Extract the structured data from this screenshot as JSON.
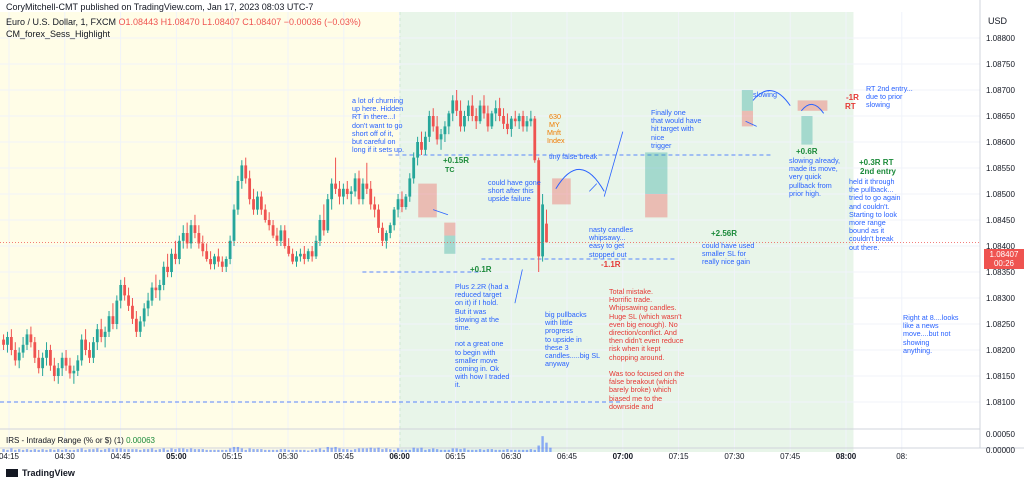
{
  "header": {
    "title": "CoryMitchell-CMT published on TradingView.com, Jan 17, 2023 08:03 UTC-7"
  },
  "ohlc": {
    "symbol": "Euro / U.S. Dollar, 1, FXCM",
    "o": "O1.08443",
    "h": "H1.08470",
    "l": "L1.08407",
    "c": "C1.08407",
    "chg": "−0.00036 (−0.03%)"
  },
  "indicators": {
    "main": "CM_forex_Sess_Highlight",
    "sub_name": "IRS - Intraday Range (% or $) (1)",
    "sub_value": "0.00063"
  },
  "axis": {
    "currency": "USD",
    "price_ticks": [
      "1.08800",
      "1.08750",
      "1.08700",
      "1.08650",
      "1.08600",
      "1.08550",
      "1.08500",
      "1.08450",
      "1.08400",
      "1.08350",
      "1.08300",
      "1.08250",
      "1.08200",
      "1.08150",
      "1.08100"
    ],
    "sub_ticks": [
      "0.00050",
      "0.00000"
    ],
    "time_ticks": [
      "04:15",
      "04:30",
      "04:45",
      "05:00",
      "05:15",
      "05:30",
      "05:45",
      "06:00",
      "06:15",
      "06:30",
      "06:45",
      "07:00",
      "07:15",
      "07:30",
      "07:45",
      "08:00",
      "08:"
    ]
  },
  "last_price": {
    "price": "1.08407",
    "countdown": "00:26"
  },
  "branding": {
    "logo": "TradingView"
  },
  "colors": {
    "up": "#26a69a",
    "down": "#ef5350",
    "pre_session": "#fffde7",
    "session": "#e8f5e9",
    "annotation_blue": "#2962ff"
  },
  "annotations": {
    "churning": "a lot of churning\nup here. Hidden\nRT in there...I\ndon't want to go\nshort off of it,\nbut careful on\nlong if it sets up.",
    "trade1_result": "+0.15R",
    "trade1_tc": "TC",
    "could_have_gone_short": "could have gone\nshort after this\nupside failure",
    "trade2_result": "+0.1R",
    "plus_2r": "Plus 2.2R (had a\nreduced target\non it) if I hold.\nBut it was\nslowing at the\ntime.\n\nnot a great one\nto begin with\nsmaller move\ncoming in. Ok\nwith how I traded\nit.",
    "big_pullbacks": "big pullbacks\nwith little\nprogress\nto upside in\nthese 3\ncandles.....big SL\nanyway",
    "mmi_630": "630",
    "mmi_my": "MY",
    "mmi_mnft": "Mnft",
    "mmi_index": "Index",
    "tiny_false_break": "tiny false break",
    "nasty_candles": "nasty candles\nwhipsawy...\neasy to get\nstopped out",
    "trade3_result": "-1.1R",
    "total_mistake": "Total mistake.\nHorrific trade.\nWhipsawing candles.\nHuge SL (which wasn't\neven big enough). No\ndirection/conflict. And\nthen didn't even reduce\nrisk when it kept\nchopping around.\n\nWas too focused on the\nfalse breakout (which\nbarely broke) which\nbiased me to the\ndownside and",
    "finally_one": "Finally one\nthat would have\nhit target with\nnice\ntrigger",
    "trade4_result": "+2.56R",
    "could_have_used": "could have used\nsmaller SL for\nreally nice gain",
    "slowing": "slowing",
    "trade5_result": "+0.6R",
    "slowing_already": "slowing already,\nmade its move,\nvery quick\npullback from\nprior high.",
    "trade6_result": "-1R",
    "rt_label": "RT",
    "rt_2nd_entry": "RT 2nd entry...\ndue to prior\nslowing",
    "trade7_result": "+0.3R RT",
    "second_entry": "2nd entry",
    "held_it": "held it through\nthe pullback...\ntried to go again\nand couldn't.\nStarting to look\nmore range\nbound as it\ncouldn't break\nout there.",
    "right_at_8": "Right at 8....looks\nlike a news\nmove....but not\nshowing\nanything."
  },
  "chart_data": {
    "type": "candlestick",
    "symbol": "EURUSD",
    "interval": "1",
    "ylim": [
      1.0805,
      1.0885
    ],
    "grid": true,
    "sessions": [
      {
        "from": "04:12",
        "to": "06:00"
      },
      {
        "from": "06:00",
        "to": "08:02"
      }
    ],
    "reference_levels": [
      1.08575,
      1.08375,
      1.0835,
      1.081
    ],
    "ohlc": [
      [
        1.0822,
        1.0823,
        1.082,
        1.0821
      ],
      [
        1.0821,
        1.08235,
        1.08195,
        1.08225
      ],
      [
        1.08225,
        1.0824,
        1.0819,
        1.082
      ],
      [
        1.082,
        1.08215,
        1.0817,
        1.0818
      ],
      [
        1.0818,
        1.08205,
        1.08165,
        1.08195
      ],
      [
        1.08195,
        1.08225,
        1.08185,
        1.0821
      ],
      [
        1.0821,
        1.0824,
        1.082,
        1.0823
      ],
      [
        1.0823,
        1.08245,
        1.08205,
        1.08215
      ],
      [
        1.08215,
        1.08225,
        1.08175,
        1.08185
      ],
      [
        1.08185,
        1.082,
        1.08155,
        1.08165
      ],
      [
        1.08165,
        1.08195,
        1.0815,
        1.08185
      ],
      [
        1.08185,
        1.08215,
        1.0817,
        1.082
      ],
      [
        1.082,
        1.0821,
        1.0816,
        1.0817
      ],
      [
        1.0817,
        1.08185,
        1.0814,
        1.0815
      ],
      [
        1.0815,
        1.08175,
        1.08135,
        1.08165
      ],
      [
        1.08165,
        1.08195,
        1.0815,
        1.08185
      ],
      [
        1.08185,
        1.082,
        1.0816,
        1.0817
      ],
      [
        1.0817,
        1.08185,
        1.08145,
        1.08155
      ],
      [
        1.08155,
        1.0817,
        1.08135,
        1.0816
      ],
      [
        1.0816,
        1.0819,
        1.0815,
        1.0818
      ],
      [
        1.0818,
        1.0823,
        1.0817,
        1.0822
      ],
      [
        1.0822,
        1.0824,
        1.0819,
        1.082
      ],
      [
        1.082,
        1.08215,
        1.08175,
        1.08185
      ],
      [
        1.08185,
        1.08225,
        1.08175,
        1.08215
      ],
      [
        1.08215,
        1.0825,
        1.082,
        1.0824
      ],
      [
        1.0824,
        1.0826,
        1.08215,
        1.08225
      ],
      [
        1.08225,
        1.08245,
        1.08205,
        1.08235
      ],
      [
        1.08235,
        1.08275,
        1.08225,
        1.08265
      ],
      [
        1.08265,
        1.0829,
        1.0824,
        1.0825
      ],
      [
        1.0825,
        1.08305,
        1.0824,
        1.08295
      ],
      [
        1.08295,
        1.08335,
        1.0828,
        1.08325
      ],
      [
        1.08325,
        1.0834,
        1.08295,
        1.08305
      ],
      [
        1.08305,
        1.0832,
        1.08275,
        1.08285
      ],
      [
        1.08285,
        1.083,
        1.0825,
        1.0826
      ],
      [
        1.0826,
        1.08275,
        1.08225,
        1.08235
      ],
      [
        1.08235,
        1.08265,
        1.08225,
        1.08255
      ],
      [
        1.08255,
        1.0829,
        1.08245,
        1.0828
      ],
      [
        1.0828,
        1.0831,
        1.08265,
        1.08295
      ],
      [
        1.08295,
        1.0833,
        1.08285,
        1.0832
      ],
      [
        1.0832,
        1.08345,
        1.083,
        1.08315
      ],
      [
        1.08315,
        1.08335,
        1.08295,
        1.08325
      ],
      [
        1.08325,
        1.0837,
        1.08315,
        1.0836
      ],
      [
        1.0836,
        1.08385,
        1.0834,
        1.0835
      ],
      [
        1.0835,
        1.08395,
        1.0834,
        1.08385
      ],
      [
        1.08385,
        1.0841,
        1.08365,
        1.08375
      ],
      [
        1.08375,
        1.0842,
        1.08365,
        1.0841
      ],
      [
        1.0841,
        1.0844,
        1.08395,
        1.08425
      ],
      [
        1.08425,
        1.08445,
        1.08395,
        1.08405
      ],
      [
        1.08405,
        1.0845,
        1.08395,
        1.0844
      ],
      [
        1.0844,
        1.0846,
        1.08415,
        1.08425
      ],
      [
        1.08425,
        1.0844,
        1.08395,
        1.08405
      ],
      [
        1.08405,
        1.0842,
        1.0838,
        1.0839
      ],
      [
        1.0839,
        1.08405,
        1.0837,
        1.08375
      ],
      [
        1.08375,
        1.0839,
        1.08355,
        1.08365
      ],
      [
        1.08365,
        1.08385,
        1.08355,
        1.0838
      ],
      [
        1.0838,
        1.08395,
        1.0836,
        1.0837
      ],
      [
        1.0837,
        1.0838,
        1.0835,
        1.0836
      ],
      [
        1.0836,
        1.0838,
        1.0835,
        1.08375
      ],
      [
        1.08375,
        1.0842,
        1.08365,
        1.0841
      ],
      [
        1.0841,
        1.0848,
        1.084,
        1.0847
      ],
      [
        1.0847,
        1.08535,
        1.0846,
        1.08525
      ],
      [
        1.08525,
        1.08565,
        1.0851,
        1.08555
      ],
      [
        1.08555,
        1.0857,
        1.0852,
        1.0853
      ],
      [
        1.0853,
        1.08545,
        1.0848,
        1.0849
      ],
      [
        1.0849,
        1.0851,
        1.0846,
        1.0847
      ],
      [
        1.0847,
        1.08505,
        1.0846,
        1.08495
      ],
      [
        1.08495,
        1.08505,
        1.0846,
        1.0847
      ],
      [
        1.0847,
        1.0848,
        1.08445,
        1.0845
      ],
      [
        1.0845,
        1.08465,
        1.0843,
        1.0844
      ],
      [
        1.0844,
        1.0845,
        1.08415,
        1.0842
      ],
      [
        1.0842,
        1.08435,
        1.084,
        1.0841
      ],
      [
        1.0841,
        1.0844,
        1.084,
        1.0843
      ],
      [
        1.0843,
        1.0844,
        1.08395,
        1.084
      ],
      [
        1.084,
        1.08415,
        1.0838,
        1.08385
      ],
      [
        1.08385,
        1.08395,
        1.08365,
        1.0837
      ],
      [
        1.0837,
        1.0839,
        1.0836,
        1.0838
      ],
      [
        1.0838,
        1.08395,
        1.0837,
        1.08385
      ],
      [
        1.08385,
        1.084,
        1.08365,
        1.08375
      ],
      [
        1.08375,
        1.08395,
        1.0837,
        1.0839
      ],
      [
        1.0839,
        1.084,
        1.0837,
        1.0838
      ],
      [
        1.0838,
        1.0842,
        1.08375,
        1.0841
      ],
      [
        1.0841,
        1.0846,
        1.084,
        1.0845
      ],
      [
        1.0845,
        1.0848,
        1.0842,
        1.0843
      ],
      [
        1.0843,
        1.085,
        1.08425,
        1.0849
      ],
      [
        1.0849,
        1.0853,
        1.0847,
        1.0852
      ],
      [
        1.0852,
        1.0857,
        1.085,
        1.0851
      ],
      [
        1.0851,
        1.08525,
        1.0848,
        1.08495
      ],
      [
        1.08495,
        1.0852,
        1.0848,
        1.0851
      ],
      [
        1.0851,
        1.08525,
        1.0849,
        1.085
      ],
      [
        1.085,
        1.08515,
        1.0848,
        1.08505
      ],
      [
        1.08505,
        1.0854,
        1.08495,
        1.0853
      ],
      [
        1.0853,
        1.08545,
        1.0848,
        1.0849
      ],
      [
        1.0849,
        1.0853,
        1.0848,
        1.0852
      ],
      [
        1.0852,
        1.0856,
        1.085,
        1.0851
      ],
      [
        1.0851,
        1.08525,
        1.0847,
        1.0848
      ],
      [
        1.0848,
        1.08495,
        1.08455,
        1.0847
      ],
      [
        1.0847,
        1.0848,
        1.08425,
        1.08435
      ],
      [
        1.08435,
        1.08445,
        1.084,
        1.0841
      ],
      [
        1.0841,
        1.0843,
        1.08395,
        1.08425
      ],
      [
        1.08425,
        1.08445,
        1.08415,
        1.0844
      ],
      [
        1.0844,
        1.08475,
        1.0843,
        1.0847
      ],
      [
        1.0847,
        1.085,
        1.08455,
        1.0849
      ],
      [
        1.0849,
        1.08505,
        1.08465,
        1.08475
      ],
      [
        1.08475,
        1.085,
        1.0847,
        1.08495
      ],
      [
        1.08495,
        1.0854,
        1.08485,
        1.0853
      ],
      [
        1.0853,
        1.0858,
        1.0852,
        1.0857
      ],
      [
        1.0857,
        1.0861,
        1.08555,
        1.086
      ],
      [
        1.086,
        1.0862,
        1.08575,
        1.08585
      ],
      [
        1.08585,
        1.0862,
        1.08575,
        1.0861
      ],
      [
        1.0861,
        1.0866,
        1.086,
        1.0865
      ],
      [
        1.0865,
        1.08665,
        1.0862,
        1.0863
      ],
      [
        1.0863,
        1.0865,
        1.08595,
        1.08605
      ],
      [
        1.08605,
        1.08625,
        1.08585,
        1.08615
      ],
      [
        1.08615,
        1.0864,
        1.086,
        1.0863
      ],
      [
        1.0863,
        1.0866,
        1.08615,
        1.08655
      ],
      [
        1.08655,
        1.0869,
        1.0864,
        1.0868
      ],
      [
        1.0868,
        1.087,
        1.0865,
        1.0866
      ],
      [
        1.0866,
        1.0868,
        1.0862,
        1.0863
      ],
      [
        1.0863,
        1.0866,
        1.0862,
        1.0865
      ],
      [
        1.0865,
        1.0868,
        1.0864,
        1.0867
      ],
      [
        1.0867,
        1.0869,
        1.0864,
        1.0865
      ],
      [
        1.0865,
        1.08665,
        1.08625,
        1.0864
      ],
      [
        1.0864,
        1.0868,
        1.08635,
        1.0867
      ],
      [
        1.0867,
        1.0869,
        1.08645,
        1.08655
      ],
      [
        1.08655,
        1.0867,
        1.0862,
        1.0863
      ],
      [
        1.0863,
        1.0866,
        1.08625,
        1.08655
      ],
      [
        1.08655,
        1.0868,
        1.0864,
        1.08665
      ],
      [
        1.08665,
        1.08685,
        1.0864,
        1.0865
      ],
      [
        1.0865,
        1.08665,
        1.08625,
        1.08635
      ],
      [
        1.08635,
        1.08655,
        1.08615,
        1.08625
      ],
      [
        1.08625,
        1.0865,
        1.0861,
        1.08645
      ],
      [
        1.08645,
        1.0866,
        1.0863,
        1.0864
      ],
      [
        1.0864,
        1.08655,
        1.08625,
        1.0865
      ],
      [
        1.0865,
        1.0866,
        1.0862,
        1.0863
      ],
      [
        1.0863,
        1.0865,
        1.0862,
        1.0864
      ],
      [
        1.0864,
        1.0866,
        1.0863,
        1.08645
      ],
      [
        1.08645,
        1.0865,
        1.0856,
        1.08565
      ],
      [
        1.08565,
        1.0857,
        1.0835,
        1.0838
      ],
      [
        1.0838,
        1.085,
        1.0837,
        1.0848
      ],
      [
        1.08443,
        1.0847,
        1.08407,
        1.08407
      ]
    ],
    "irs_values": [
      4,
      3,
      5,
      3,
      4,
      3,
      4,
      3,
      4,
      3,
      4,
      3,
      4,
      3,
      4,
      3,
      4,
      3,
      3,
      4,
      5,
      3,
      4,
      4,
      5,
      3,
      4,
      5,
      4,
      5,
      5,
      4,
      4,
      4,
      4,
      3,
      4,
      4,
      5,
      3,
      4,
      5,
      3,
      5,
      4,
      5,
      5,
      4,
      5,
      4,
      4,
      4,
      3,
      3,
      3,
      3,
      3,
      3,
      5,
      7,
      7,
      5,
      3,
      5,
      4,
      4,
      4,
      3,
      3,
      3,
      3,
      4,
      4,
      3,
      3,
      3,
      3,
      3,
      2,
      3,
      4,
      5,
      3,
      7,
      6,
      7,
      5,
      4,
      4,
      3,
      4,
      5,
      5,
      5,
      6,
      5,
      6,
      4,
      5,
      4,
      3,
      5,
      3,
      3,
      3,
      6,
      5,
      6,
      3,
      4,
      5,
      4,
      3,
      3,
      3,
      5,
      5,
      4,
      5,
      3,
      3,
      3,
      4,
      3,
      4,
      4,
      3,
      3,
      3,
      4,
      3,
      3,
      3,
      3,
      3,
      4,
      3,
      9,
      22,
      13,
      6
    ]
  }
}
